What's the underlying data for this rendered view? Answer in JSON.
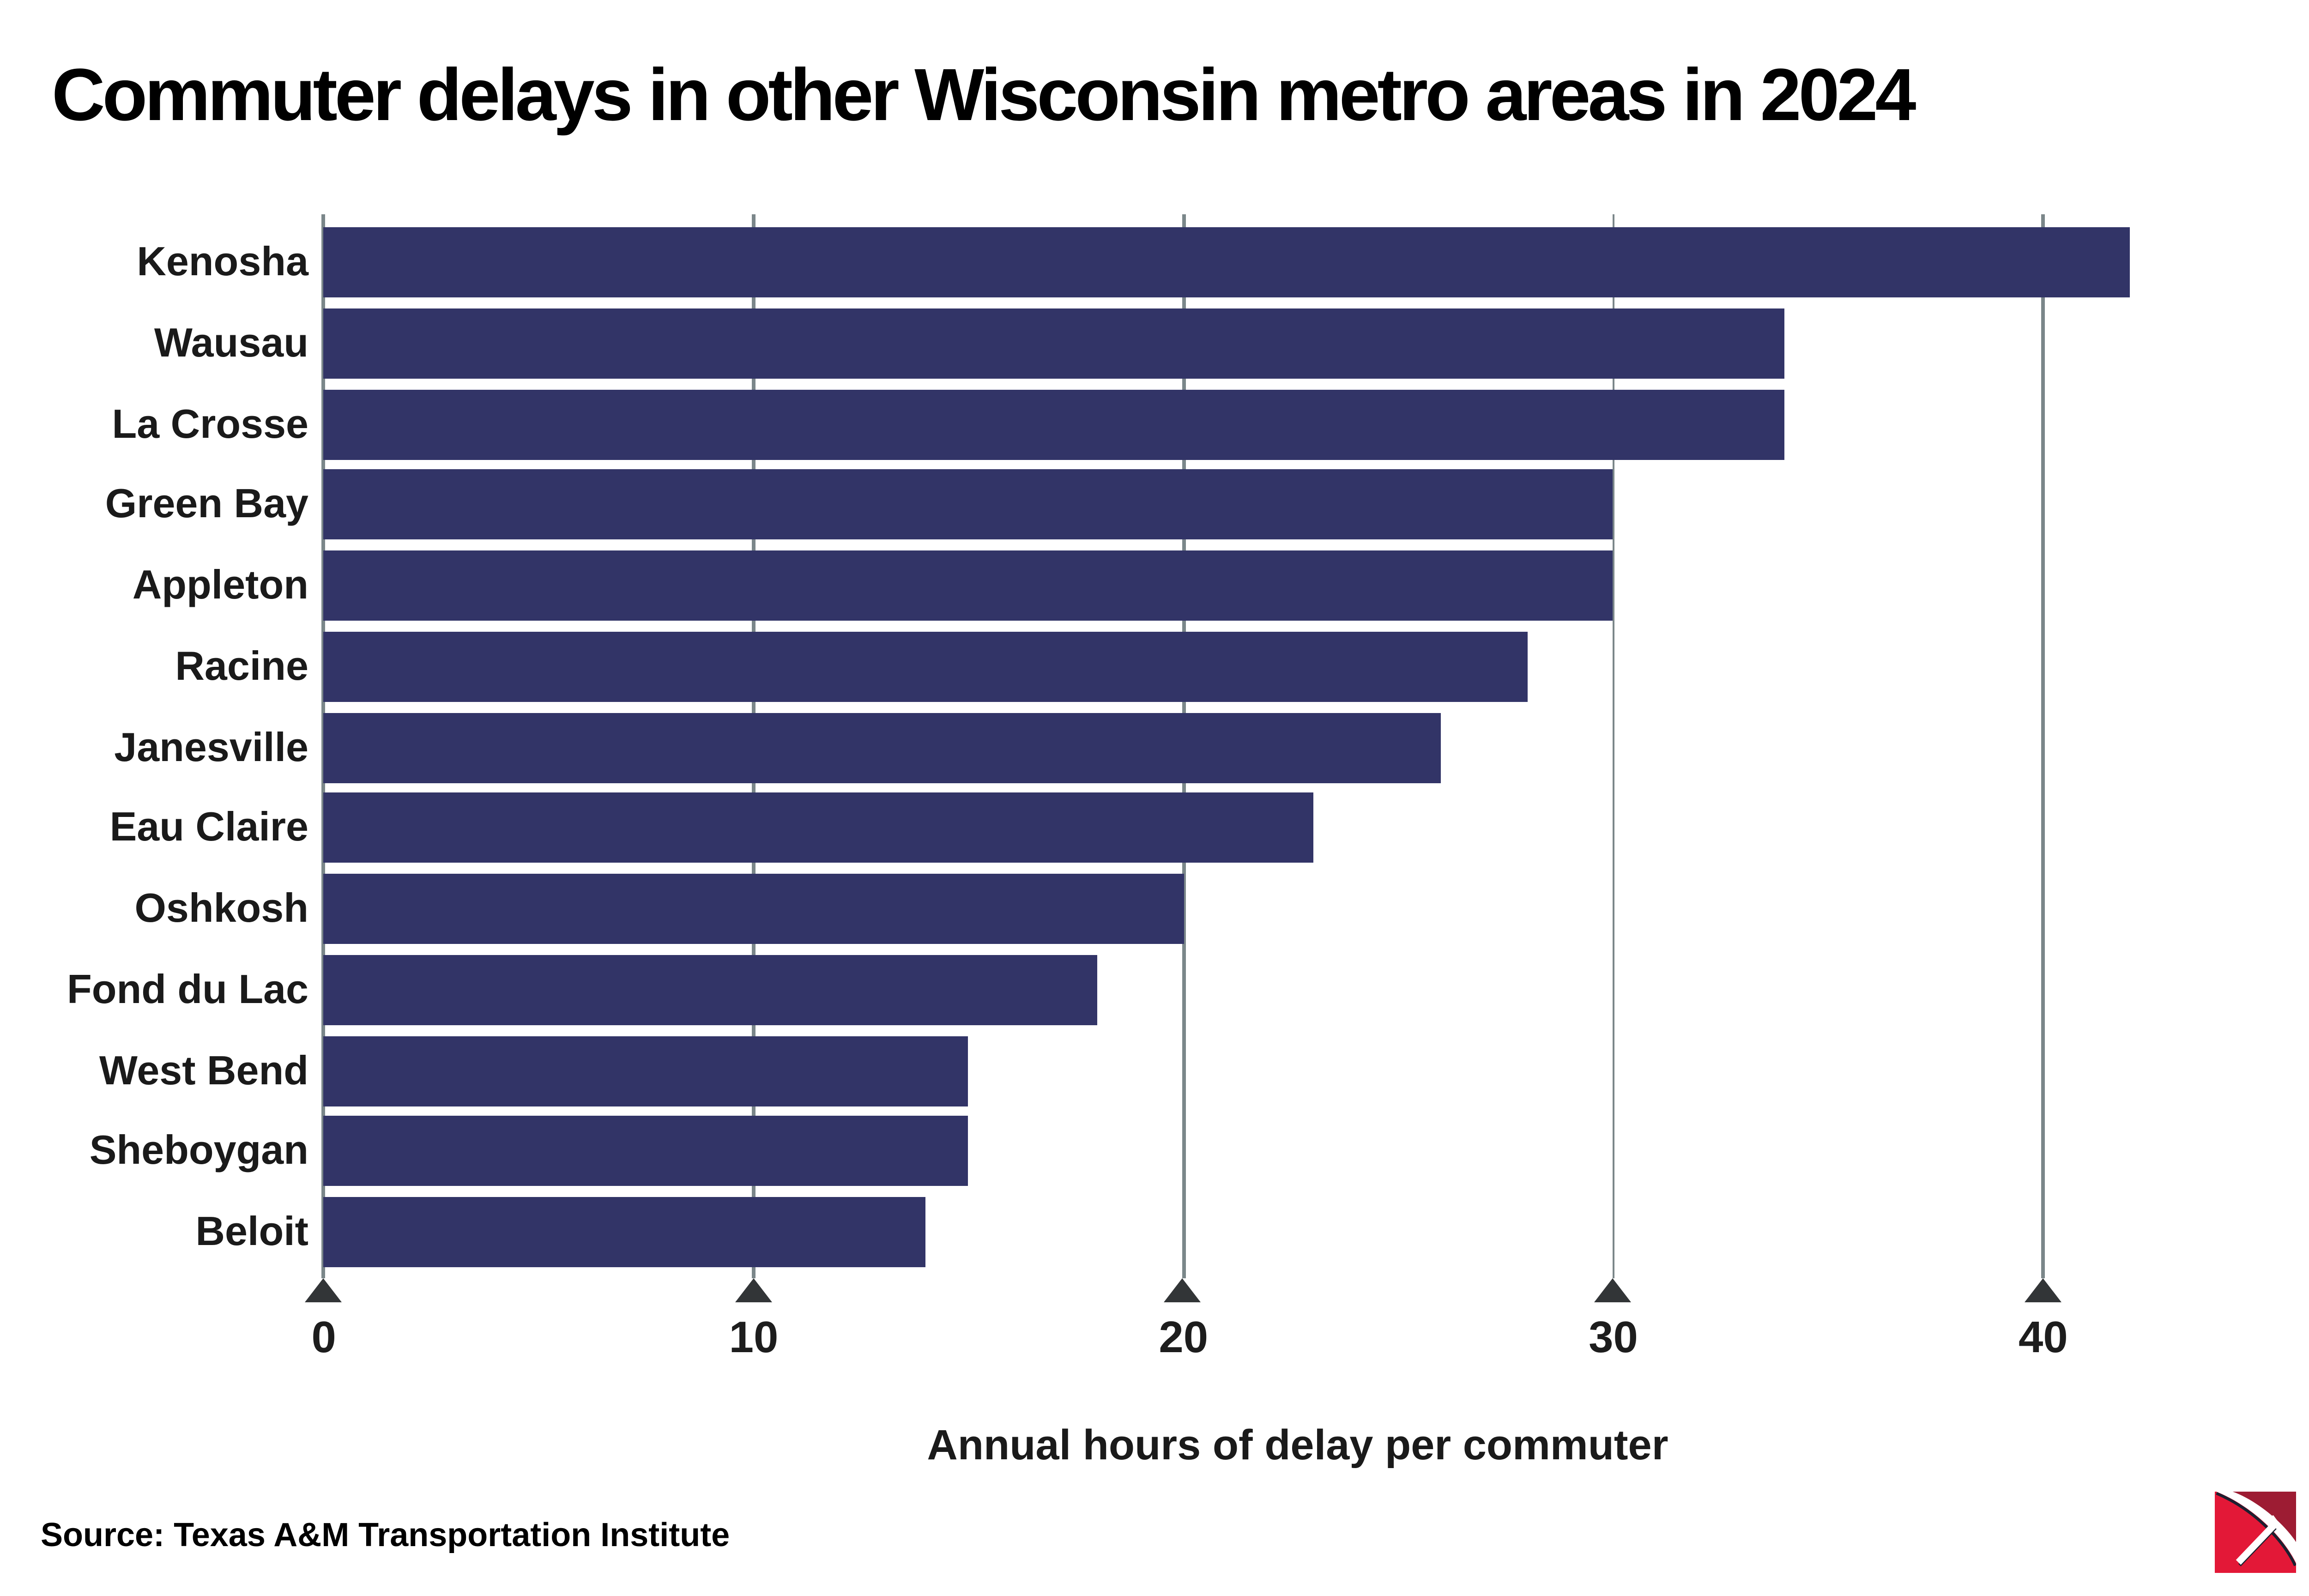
{
  "title": "Commuter delays in other Wisconsin metro areas in 2024",
  "source": "Source: Texas A&M Transportation Institute",
  "chart_data": {
    "type": "bar",
    "orientation": "horizontal",
    "title": "Commuter delays in other Wisconsin metro areas in 2024",
    "xlabel": "Annual hours of delay per commuter",
    "ylabel": "",
    "categories": [
      "Kenosha",
      "Wausau",
      "La Crosse",
      "Green Bay",
      "Appleton",
      "Racine",
      "Janesville",
      "Eau Claire",
      "Oshkosh",
      "Fond du Lac",
      "West Bend",
      "Sheboygan",
      "Beloit"
    ],
    "values": [
      42,
      34,
      34,
      30,
      30,
      28,
      26,
      23,
      20,
      18,
      15,
      15,
      14
    ],
    "xticks": [
      0,
      10,
      20,
      30,
      40
    ],
    "xlim": [
      0,
      42.6
    ],
    "grid": true,
    "legend": false,
    "bar_color": "#323467",
    "gridline_color": "#7b878a",
    "tick_marker_color": "#323537",
    "text_color": "#1a1a1a"
  },
  "logo": {
    "name": "pickaxe-logo",
    "colors": {
      "bright_red": "#e31837",
      "dark_red": "#9d1c33",
      "navy": "#1c2030",
      "white": "#ffffff"
    }
  }
}
